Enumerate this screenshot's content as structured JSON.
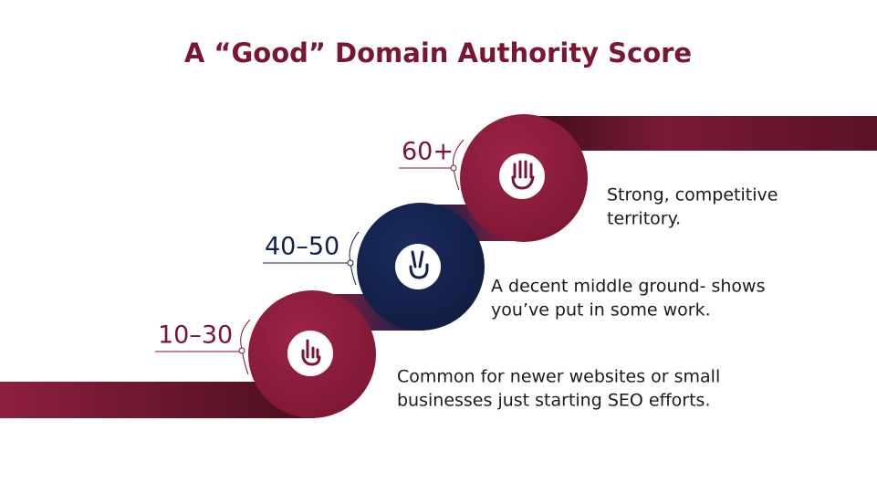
{
  "title": "A “Good” Domain Authority Score",
  "steps": [
    {
      "label": "10–30",
      "description": [
        "Common for newer websites or small",
        "businesses just starting SEO efforts."
      ]
    },
    {
      "label": "40–50",
      "description": [
        "A decent middle ground- shows",
        "you’ve put in some work."
      ]
    },
    {
      "label": "60+",
      "description": [
        "Strong, competitive",
        "territory."
      ]
    }
  ]
}
